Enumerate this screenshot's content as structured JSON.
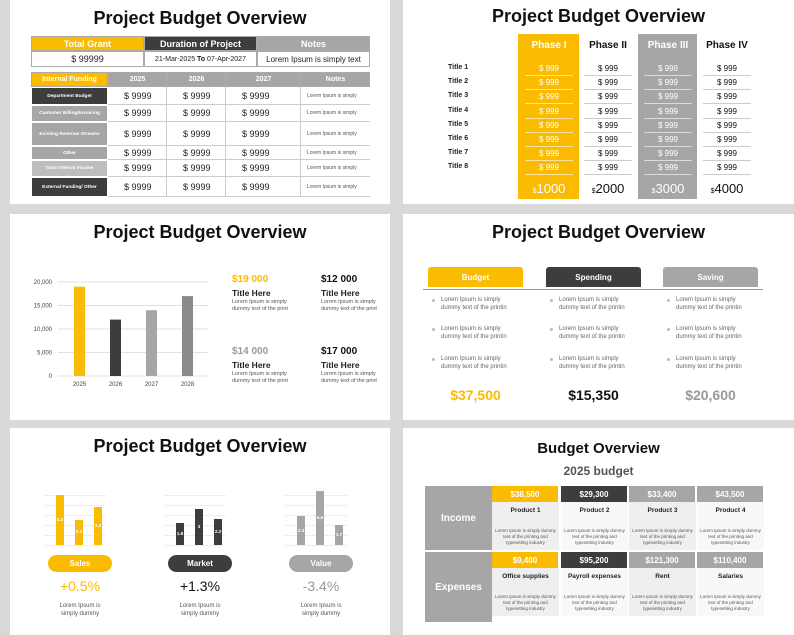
{
  "colors": {
    "yellow": "#fbbb00",
    "dark": "#3d3d3d",
    "gray": "#a6a6a6"
  },
  "s1": {
    "title": "Project Budget Overview",
    "head": [
      "Total Grant",
      "Duration of Project",
      "Notes"
    ],
    "grant": "$ 99999",
    "dur_a": "21-Mar-2025",
    "dur_to": "To",
    "dur_b": "07-Apr-2027",
    "note": "Lorem Ipsum is simply text",
    "cols": [
      "Internal Funding",
      "2025",
      "2026",
      "2027",
      "Notes"
    ],
    "rows": [
      {
        "label": "Department Budget",
        "v": [
          "$ 9999",
          "$ 9999",
          "$ 9999"
        ],
        "n": "Lorem Ipsum is simply"
      },
      {
        "label": "Customer Billing/Invoicing",
        "v": [
          "$ 9999",
          "$ 9999",
          "$ 9999"
        ],
        "n": "Lorem Ipsum is simply"
      },
      {
        "label": "Existing Revenue Streams",
        "v": [
          "$ 9999",
          "$ 9999",
          "$ 9999"
        ],
        "n": "Lorem Ipsum is simply"
      },
      {
        "label": "Other",
        "v": [
          "$ 9999",
          "$ 9999",
          "$ 9999"
        ],
        "n": "Lorem Ipsum is simply"
      },
      {
        "label": "Total Internal Income",
        "v": [
          "$ 9999",
          "$ 9999",
          "$ 9999"
        ],
        "n": "Lorem Ipsum is simply"
      },
      {
        "label": "External Funding/ Other",
        "v": [
          "$ 9999",
          "$ 9999",
          "$ 9999"
        ],
        "n": "Lorem Ipsum is simply"
      }
    ]
  },
  "s2": {
    "title": "Project Budget Overview",
    "phases": [
      "Phase I",
      "Phase II",
      "Phase III",
      "Phase IV"
    ],
    "rows": [
      "Title 1",
      "Title 2",
      "Title 3",
      "Title 4",
      "Title 5",
      "Title 6",
      "Title 7",
      "Title 8"
    ],
    "cell": "$ 999",
    "totals": [
      "1000",
      "2000",
      "3000",
      "4000"
    ],
    "cur": "$"
  },
  "s3": {
    "title": "Project Budget Overview",
    "yticks": [
      "20,000",
      "15,000",
      "10,000",
      "5,000",
      "0"
    ],
    "stats": [
      {
        "val": "$19 000",
        "head": "Title Here",
        "desc1": "Lorem Ipsum is simply",
        "desc2": "dummy text of the print"
      },
      {
        "val": "$12 000",
        "head": "Title Here",
        "desc1": "Lorem Ipsum is simply",
        "desc2": "dummy text of the print"
      },
      {
        "val": "$14 000",
        "head": "Title Here",
        "desc1": "Lorem Ipsum is simply",
        "desc2": "dummy text of the print"
      },
      {
        "val": "$17 000",
        "head": "Title Here",
        "desc1": "Lorem Ipsum is simply",
        "desc2": "dummy text of the print"
      }
    ]
  },
  "chart_data": [
    {
      "type": "bar",
      "categories": [
        "2025",
        "2026",
        "2027",
        "2028"
      ],
      "values": [
        19000,
        12000,
        14000,
        17000
      ],
      "ylim": [
        0,
        20000
      ],
      "yticks": [
        0,
        5000,
        10000,
        15000,
        20000
      ],
      "grid": true
    },
    {
      "type": "bar",
      "series": [
        {
          "name": "Sales",
          "values": [
            4.2,
            2.1,
            3.2
          ]
        },
        {
          "name": "Market",
          "values": [
            1.8,
            3.0,
            2.2
          ]
        },
        {
          "name": "Value",
          "values": [
            2.4,
            4.5,
            1.7
          ]
        }
      ]
    }
  ],
  "s4": {
    "title": "Project Budget Overview",
    "heads": [
      "Budget",
      "Spending",
      "Saving"
    ],
    "bullet1": "Lorem Ipsum is simply",
    "bullet2": "dummy text of the printin",
    "totals": [
      "$37,500",
      "$15,350",
      "$20,600"
    ]
  },
  "s5": {
    "title": "Project Budget Overview",
    "labels": [
      "Sales",
      "Market",
      "Value"
    ],
    "pcts": [
      "+0.5%",
      "+1.3%",
      "-3.4%"
    ],
    "desc1": "Lorem Ipsum is",
    "desc2": "simply dummy",
    "bar_labels": [
      [
        "4.2",
        "2.1",
        "3.2"
      ],
      [
        "1.8",
        "3",
        "2.2"
      ],
      [
        "2.4",
        "4.5",
        "1.7"
      ]
    ]
  },
  "s6": {
    "title": "Budget Overview",
    "subtitle": "2025 budget",
    "income": "Income",
    "expenses": "Expenses",
    "inc_vals": [
      "$38,500",
      "$29,300",
      "$33,400",
      "$43,500"
    ],
    "inc_items": [
      "Product 1",
      "Product 2",
      "Product 3",
      "Product 4"
    ],
    "exp_vals": [
      "$9,400",
      "$95,200",
      "$121,300",
      "$110,400"
    ],
    "exp_items": [
      "Office supplies",
      "Payroll expenses",
      "Rent",
      "Salaries"
    ],
    "desc": [
      "Lorem Ipsum is simply dummy",
      "text of the printing and",
      "typesetting industry"
    ]
  }
}
